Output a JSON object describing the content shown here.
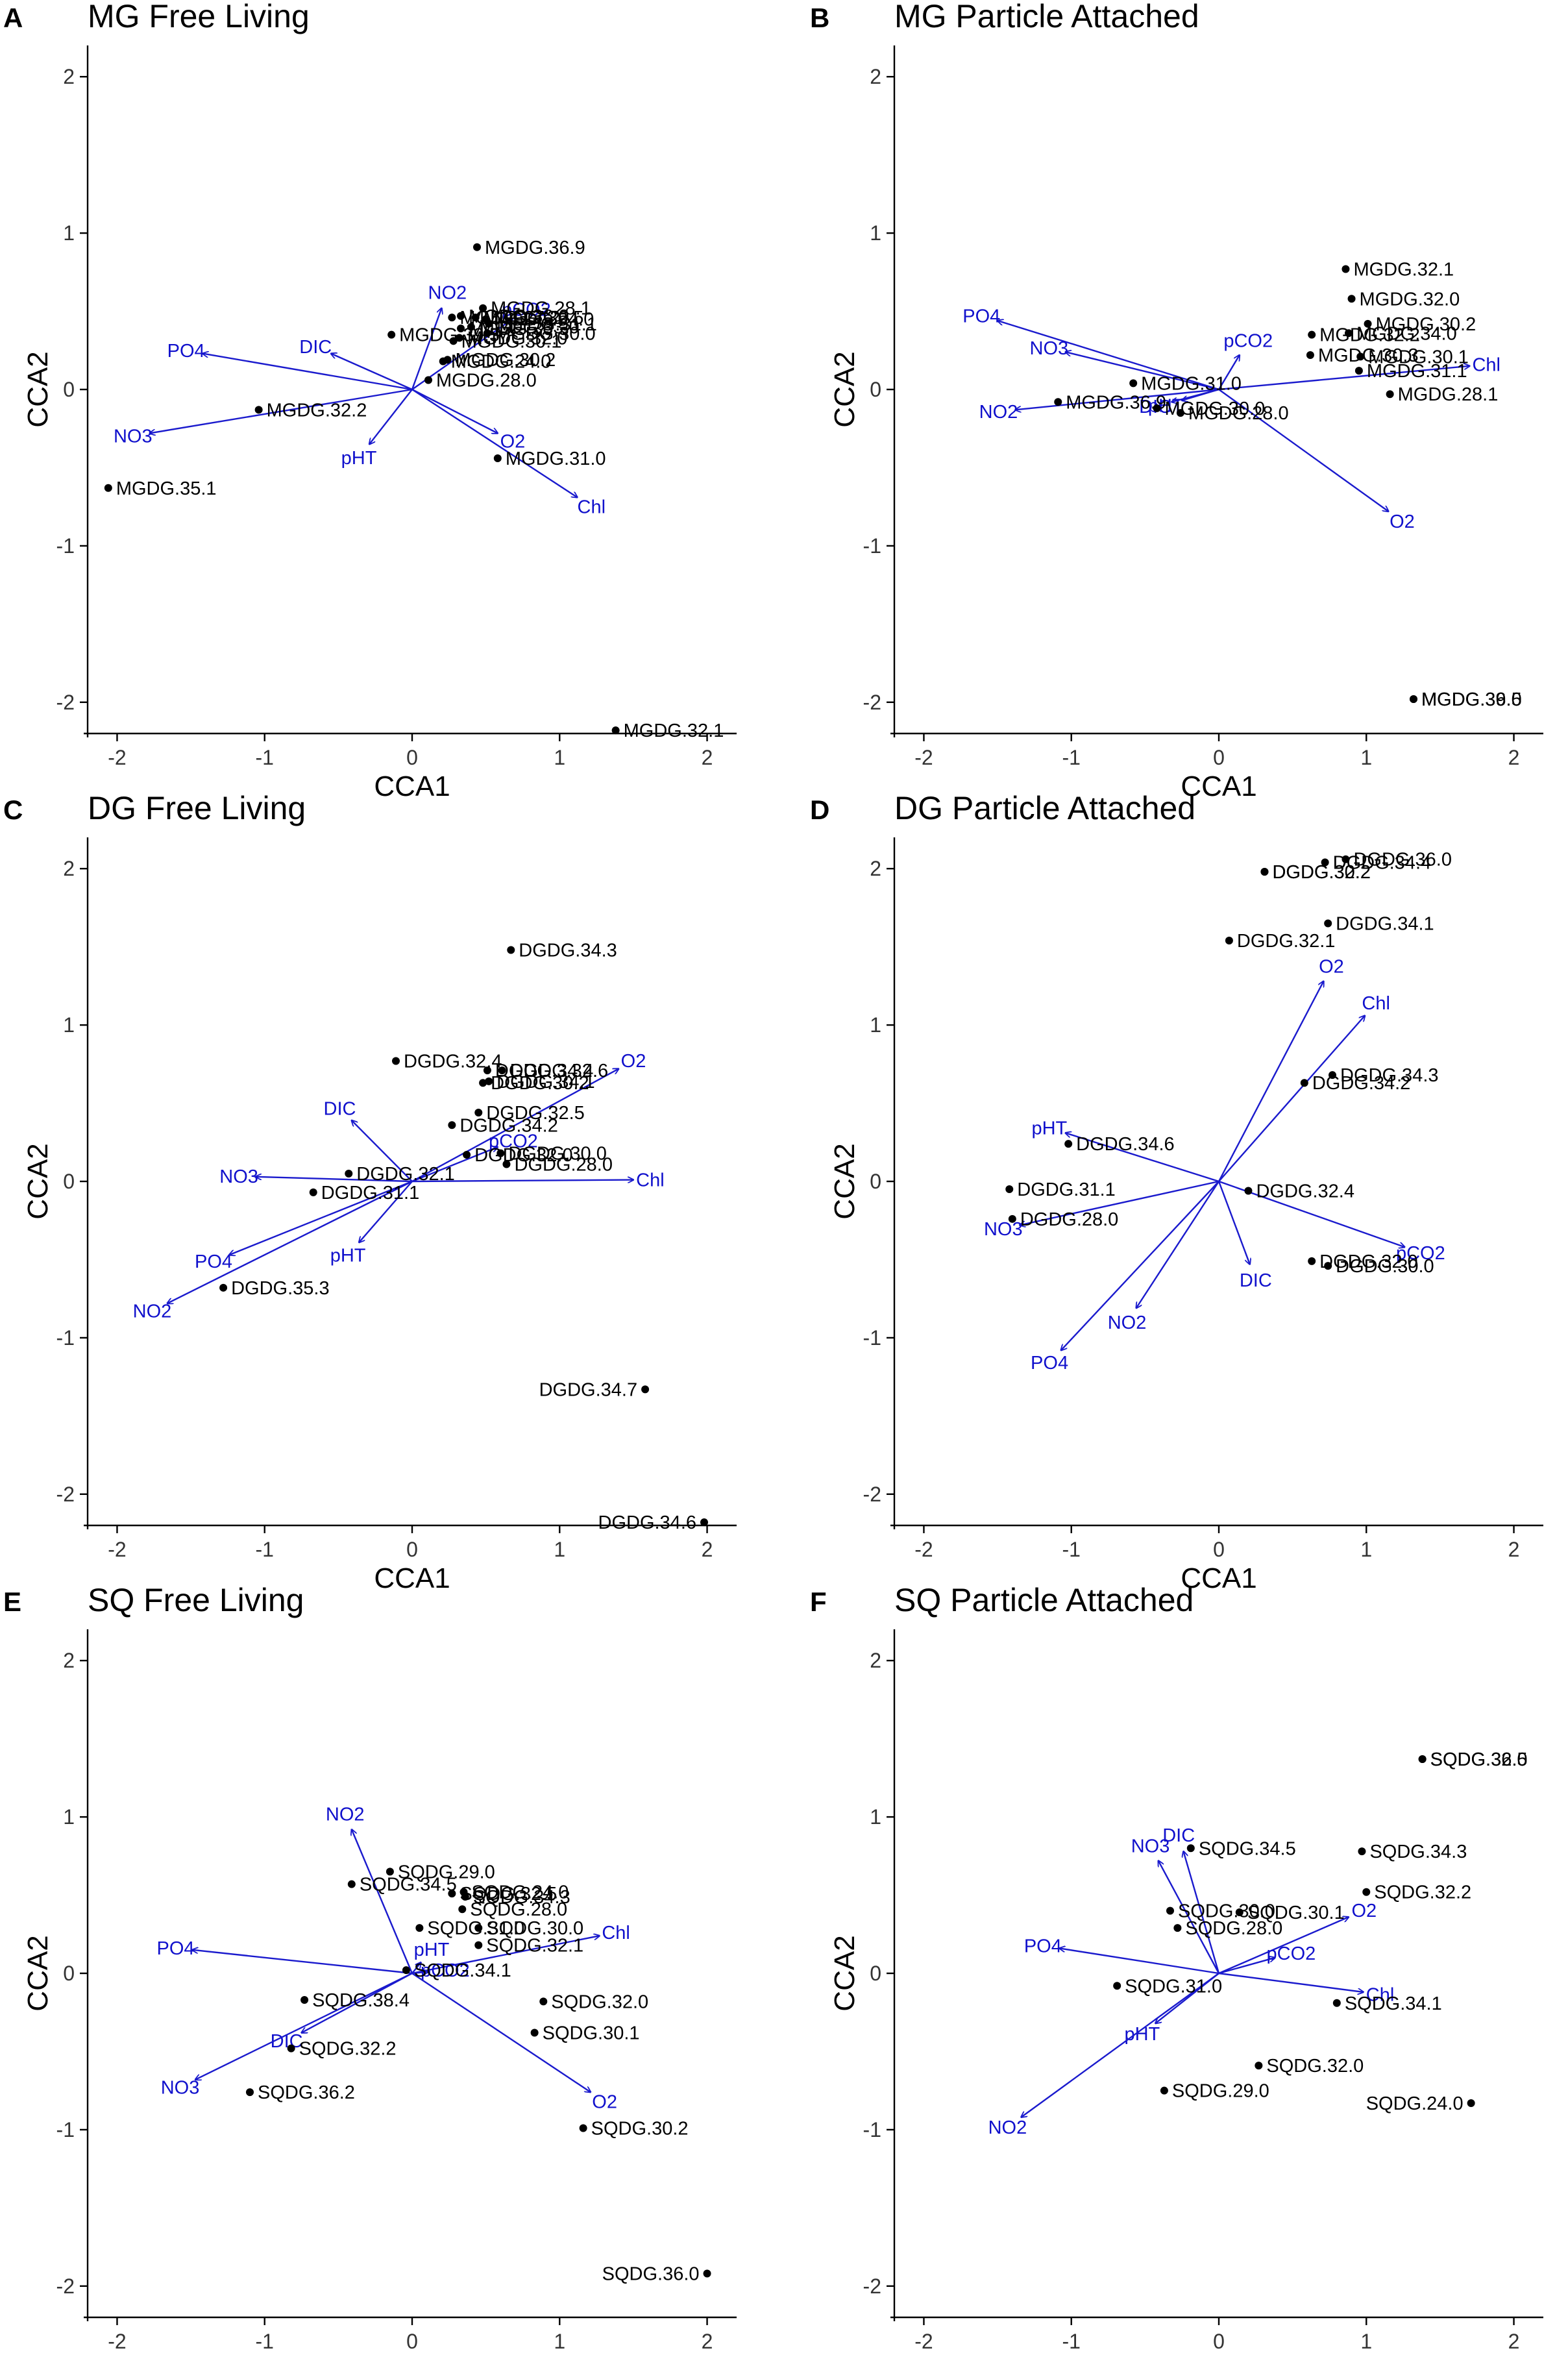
{
  "x_axis_title": "CCA1",
  "y_axis_title": "CCA2",
  "colors": {
    "points": "#000000",
    "arrows": "#1a1acd",
    "arrow_labels": "#1010cc"
  },
  "chart_data": [
    {
      "type": "scatter",
      "panel": "A",
      "title": "MG Free Living",
      "xlabel": "CCA1",
      "ylabel": "CCA2",
      "xlim": [
        -2.2,
        2.2
      ],
      "ylim": [
        -2.2,
        2.2
      ],
      "xticks": [
        -2,
        -1,
        0,
        1,
        2
      ],
      "yticks": [
        -2,
        -1,
        0,
        1,
        2
      ],
      "points": [
        {
          "label": "MGDG.36.9",
          "x": 0.44,
          "y": 0.91
        },
        {
          "label": "MGDG.27.2",
          "x": 0.27,
          "y": 0.46
        },
        {
          "label": "MGDG.28.1",
          "x": 0.48,
          "y": 0.52
        },
        {
          "label": "MGDG.36.0",
          "x": 0.33,
          "y": 0.47
        },
        {
          "label": "MGDG.34.0",
          "x": 0.5,
          "y": 0.45
        },
        {
          "label": "MGDG.39.5",
          "x": -0.14,
          "y": 0.35
        },
        {
          "label": "MGDG.30.3",
          "x": 0.33,
          "y": 0.39
        },
        {
          "label": "MGDG.36.5",
          "x": 0.43,
          "y": 0.46
        },
        {
          "label": "MGDG.30.1",
          "x": 0.28,
          "y": 0.31
        },
        {
          "label": "MGDG.32.0",
          "x": 0.32,
          "y": 0.33
        },
        {
          "label": "MGDG.24.0",
          "x": 0.21,
          "y": 0.18
        },
        {
          "label": "MGDG.30.2",
          "x": 0.24,
          "y": 0.19
        },
        {
          "label": "MGDG.33.0",
          "x": 0.4,
          "y": 0.4
        },
        {
          "label": "MGDG.28.0",
          "x": 0.11,
          "y": 0.06
        },
        {
          "label": "MGDG.30.0",
          "x": 0.51,
          "y": 0.36
        },
        {
          "label": "MGDG.31.1",
          "x": 0.52,
          "y": 0.42
        },
        {
          "label": "MGDG.32.2",
          "x": -1.04,
          "y": -0.13
        },
        {
          "label": "MGDG.31.0",
          "x": 0.58,
          "y": -0.44
        },
        {
          "label": "MGDG.35.1",
          "x": -2.06,
          "y": -0.63
        },
        {
          "label": "MGDG.32.1",
          "x": 1.38,
          "y": -2.18
        }
      ],
      "vectors": [
        {
          "label": "NO2",
          "x": 0.2,
          "y": 0.52
        },
        {
          "label": "pCO2",
          "x": 0.68,
          "y": 0.45
        },
        {
          "label": "DIC",
          "x": -0.55,
          "y": 0.23
        },
        {
          "label": "PO4",
          "x": -1.42,
          "y": 0.23
        },
        {
          "label": "NO3",
          "x": -1.78,
          "y": -0.28
        },
        {
          "label": "pHT",
          "x": -0.29,
          "y": -0.35
        },
        {
          "label": "O2",
          "x": 0.58,
          "y": -0.28
        },
        {
          "label": "Chl",
          "x": 1.12,
          "y": -0.69
        }
      ]
    },
    {
      "type": "scatter",
      "panel": "B",
      "title": "MG Particle Attached",
      "xlabel": "CCA1",
      "ylabel": "CCA2",
      "xlim": [
        -2.2,
        2.2
      ],
      "ylim": [
        -2.2,
        2.2
      ],
      "xticks": [
        -2,
        -1,
        0,
        1,
        2
      ],
      "yticks": [
        -2,
        -1,
        0,
        1,
        2
      ],
      "points": [
        {
          "label": "MGDG.32.1",
          "x": 0.86,
          "y": 0.77
        },
        {
          "label": "MGDG.32.0",
          "x": 0.9,
          "y": 0.58
        },
        {
          "label": "MGDG.30.2",
          "x": 1.01,
          "y": 0.42
        },
        {
          "label": "MGDG.32.2",
          "x": 0.63,
          "y": 0.35
        },
        {
          "label": "MGDG.34.0",
          "x": 0.88,
          "y": 0.36
        },
        {
          "label": "MGDG.31.0",
          "x": -0.58,
          "y": 0.04
        },
        {
          "label": "MGDG.30.3",
          "x": 0.62,
          "y": 0.22
        },
        {
          "label": "MGDG.36.9",
          "x": -1.09,
          "y": -0.08
        },
        {
          "label": "MGDG.30.1",
          "x": 0.96,
          "y": 0.21
        },
        {
          "label": "MGDG.28.1",
          "x": 1.16,
          "y": -0.03
        },
        {
          "label": "MGDG.30.0",
          "x": -0.42,
          "y": -0.12
        },
        {
          "label": "MGDG.28.0",
          "x": -0.26,
          "y": -0.15
        },
        {
          "label": "MGDG.31.1",
          "x": 0.95,
          "y": 0.12
        },
        {
          "label": "MGDG.36.0",
          "x": 1.32,
          "y": -1.98
        },
        {
          "label": "MGDG.39.5",
          "x": 1.32,
          "y": -1.98
        }
      ],
      "vectors": [
        {
          "label": "PO4",
          "x": -1.5,
          "y": 0.44
        },
        {
          "label": "NO3",
          "x": -1.04,
          "y": 0.24
        },
        {
          "label": "pCO2",
          "x": 0.14,
          "y": 0.22
        },
        {
          "label": "Chl",
          "x": 1.7,
          "y": 0.15
        },
        {
          "label": "DIC",
          "x": -0.32,
          "y": -0.08
        },
        {
          "label": "pHT",
          "x": -0.25,
          "y": -0.07
        },
        {
          "label": "NO2",
          "x": -1.38,
          "y": -0.13
        },
        {
          "label": "O2",
          "x": 1.15,
          "y": -0.78
        }
      ]
    },
    {
      "type": "scatter",
      "panel": "C",
      "title": "DG Free Living",
      "xlabel": "CCA1",
      "ylabel": "CCA2",
      "xlim": [
        -2.2,
        2.2
      ],
      "ylim": [
        -2.2,
        2.2
      ],
      "xticks": [
        -2,
        -1,
        0,
        1,
        2
      ],
      "yticks": [
        -2,
        -1,
        0,
        1,
        2
      ],
      "points": [
        {
          "label": "DGDG.34.3",
          "x": 0.67,
          "y": 1.48
        },
        {
          "label": "DGDG.32.6",
          "x": 0.61,
          "y": 0.71
        },
        {
          "label": "DGDG.32.4",
          "x": -0.11,
          "y": 0.77
        },
        {
          "label": "DGDG.34.4",
          "x": 0.51,
          "y": 0.71
        },
        {
          "label": "DGDG.30.2",
          "x": 0.48,
          "y": 0.63
        },
        {
          "label": "DGDG.34.1",
          "x": 0.52,
          "y": 0.64
        },
        {
          "label": "DGDG.32.5",
          "x": 0.45,
          "y": 0.44
        },
        {
          "label": "DGDG.34.2",
          "x": 0.27,
          "y": 0.36
        },
        {
          "label": "DGDG.32.1",
          "x": -0.43,
          "y": 0.05
        },
        {
          "label": "DGDG.32.0",
          "x": 0.37,
          "y": 0.17
        },
        {
          "label": "DGDG.28.0",
          "x": 0.64,
          "y": 0.11
        },
        {
          "label": "DGDG.30.0",
          "x": 0.6,
          "y": 0.18
        },
        {
          "label": "DGDG.31.1",
          "x": -0.67,
          "y": -0.07
        },
        {
          "label": "DGDG.35.3",
          "x": -1.28,
          "y": -0.68
        },
        {
          "label": "DGDG.34.7",
          "x": 1.58,
          "y": -1.33
        },
        {
          "label": "DGDG.34.6",
          "x": 1.98,
          "y": -2.18
        }
      ],
      "vectors": [
        {
          "label": "O2",
          "x": 1.4,
          "y": 0.72
        },
        {
          "label": "DIC",
          "x": -0.41,
          "y": 0.39
        },
        {
          "label": "pCO2",
          "x": 0.58,
          "y": 0.22
        },
        {
          "label": "Chl",
          "x": 1.5,
          "y": 0.01
        },
        {
          "label": "NO3",
          "x": -1.06,
          "y": 0.03
        },
        {
          "label": "PO4",
          "x": -1.24,
          "y": -0.47
        },
        {
          "label": "pHT",
          "x": -0.36,
          "y": -0.39
        },
        {
          "label": "NO2",
          "x": -1.66,
          "y": -0.78
        }
      ]
    },
    {
      "type": "scatter",
      "panel": "D",
      "title": "DG Particle Attached",
      "xlabel": "CCA1",
      "ylabel": "CCA2",
      "xlim": [
        -2.2,
        2.2
      ],
      "ylim": [
        -2.2,
        2.2
      ],
      "xticks": [
        -2,
        -1,
        0,
        1,
        2
      ],
      "yticks": [
        -2,
        -1,
        0,
        1,
        2
      ],
      "points": [
        {
          "label": "DGDG.32.2",
          "x": 0.31,
          "y": 1.98
        },
        {
          "label": "DGDG.36.0",
          "x": 0.86,
          "y": 2.06
        },
        {
          "label": "DGDG.30.2",
          "x": 0.31,
          "y": 1.98
        },
        {
          "label": "DGDG.34.4",
          "x": 0.72,
          "y": 2.04
        },
        {
          "label": "DGDG.34.1",
          "x": 0.74,
          "y": 1.65
        },
        {
          "label": "DGDG.32.1",
          "x": 0.07,
          "y": 1.54
        },
        {
          "label": "DGDG.34.3",
          "x": 0.77,
          "y": 0.68
        },
        {
          "label": "DGDG.34.2",
          "x": 0.58,
          "y": 0.63
        },
        {
          "label": "DGDG.34.6",
          "x": -1.02,
          "y": 0.24
        },
        {
          "label": "DGDG.31.1",
          "x": -1.42,
          "y": -0.05
        },
        {
          "label": "DGDG.32.4",
          "x": 0.2,
          "y": -0.06
        },
        {
          "label": "DGDG.28.0",
          "x": -1.4,
          "y": -0.24
        },
        {
          "label": "DGDG.32.0",
          "x": 0.63,
          "y": -0.51
        },
        {
          "label": "DGDG.30.0",
          "x": 0.74,
          "y": -0.54
        }
      ],
      "vectors": [
        {
          "label": "O2",
          "x": 0.71,
          "y": 1.28
        },
        {
          "label": "Chl",
          "x": 0.99,
          "y": 1.06
        },
        {
          "label": "pHT",
          "x": -1.04,
          "y": 0.31
        },
        {
          "label": "NO3",
          "x": -1.35,
          "y": -0.28
        },
        {
          "label": "pCO2",
          "x": 1.26,
          "y": -0.42
        },
        {
          "label": "DIC",
          "x": 0.21,
          "y": -0.53
        },
        {
          "label": "NO2",
          "x": -0.56,
          "y": -0.81
        },
        {
          "label": "PO4",
          "x": -1.07,
          "y": -1.08
        }
      ]
    },
    {
      "type": "scatter",
      "panel": "E",
      "title": "SQ Free Living",
      "xlabel": "CCA1",
      "ylabel": "CCA2",
      "xlim": [
        -2.2,
        2.2
      ],
      "ylim": [
        -2.2,
        2.2
      ],
      "xticks": [
        -2,
        -1,
        0,
        1,
        2
      ],
      "yticks": [
        -2,
        -1,
        0,
        1,
        2
      ],
      "points": [
        {
          "label": "SQDG.24.0",
          "x": 0.35,
          "y": 0.52
        },
        {
          "label": "SQDG.29.0",
          "x": -0.15,
          "y": 0.65
        },
        {
          "label": "SQDG.32.5",
          "x": 0.27,
          "y": 0.51
        },
        {
          "label": "SQDG.34.3",
          "x": 0.36,
          "y": 0.49
        },
        {
          "label": "SQDG.34.5",
          "x": -0.41,
          "y": 0.57
        },
        {
          "label": "SQDG.28.0",
          "x": 0.34,
          "y": 0.41
        },
        {
          "label": "SQDG.31.0",
          "x": 0.05,
          "y": 0.29
        },
        {
          "label": "SQDG.30.0",
          "x": 0.45,
          "y": 0.29
        },
        {
          "label": "SQDG.32.1",
          "x": 0.45,
          "y": 0.18
        },
        {
          "label": "SQDG.38.4",
          "x": -0.73,
          "y": -0.17
        },
        {
          "label": "SQDG.32.0",
          "x": 0.89,
          "y": -0.18
        },
        {
          "label": "SQDG.34.1",
          "x": -0.04,
          "y": 0.02
        },
        {
          "label": "SQDG.30.1",
          "x": 0.83,
          "y": -0.38
        },
        {
          "label": "SQDG.32.2",
          "x": -0.82,
          "y": -0.48
        },
        {
          "label": "SQDG.36.2",
          "x": -1.1,
          "y": -0.76
        },
        {
          "label": "SQDG.30.2",
          "x": 1.16,
          "y": -0.99
        },
        {
          "label": "SQDG.36.0",
          "x": 2.0,
          "y": -1.92
        }
      ],
      "vectors": [
        {
          "label": "NO2",
          "x": -0.41,
          "y": 0.92
        },
        {
          "label": "pHT",
          "x": 0.06,
          "y": 0.07
        },
        {
          "label": "Chl",
          "x": 1.27,
          "y": 0.24
        },
        {
          "label": "PO4",
          "x": -1.49,
          "y": 0.15
        },
        {
          "label": "pCO2",
          "x": 0.11,
          "y": 0.01
        },
        {
          "label": "DIC",
          "x": -0.75,
          "y": -0.38
        },
        {
          "label": "O2",
          "x": 1.21,
          "y": -0.76
        },
        {
          "label": "NO3",
          "x": -1.47,
          "y": -0.68
        }
      ]
    },
    {
      "type": "scatter",
      "panel": "F",
      "title": "SQ Particle Attached",
      "xlabel": "CCA1",
      "ylabel": "CCA2",
      "xlim": [
        -2.2,
        2.2
      ],
      "ylim": [
        -2.2,
        2.2
      ],
      "xticks": [
        -2,
        -1,
        0,
        1,
        2
      ],
      "yticks": [
        -2,
        -1,
        0,
        1,
        2
      ],
      "points": [
        {
          "label": "SQDG.32.5",
          "x": 1.38,
          "y": 1.37
        },
        {
          "label": "SQDG.36.0",
          "x": 1.38,
          "y": 1.37
        },
        {
          "label": "SQDG.34.5",
          "x": -0.19,
          "y": 0.8
        },
        {
          "label": "SQDG.34.3",
          "x": 0.97,
          "y": 0.78
        },
        {
          "label": "SQDG.32.2",
          "x": 1.0,
          "y": 0.52
        },
        {
          "label": "SQDG.30.0",
          "x": -0.33,
          "y": 0.4
        },
        {
          "label": "SQDG.30.1",
          "x": 0.14,
          "y": 0.39
        },
        {
          "label": "SQDG.28.0",
          "x": -0.28,
          "y": 0.29
        },
        {
          "label": "SQDG.31.0",
          "x": -0.69,
          "y": -0.08
        },
        {
          "label": "SQDG.34.1",
          "x": 0.8,
          "y": -0.19
        },
        {
          "label": "SQDG.32.0",
          "x": 0.27,
          "y": -0.59
        },
        {
          "label": "SQDG.29.0",
          "x": -0.37,
          "y": -0.75
        },
        {
          "label": "SQDG.24.0",
          "x": 1.71,
          "y": -0.83
        }
      ],
      "vectors": [
        {
          "label": "DIC",
          "x": -0.24,
          "y": 0.78
        },
        {
          "label": "NO3",
          "x": -0.41,
          "y": 0.72
        },
        {
          "label": "O2",
          "x": 0.88,
          "y": 0.36
        },
        {
          "label": "pCO2",
          "x": 0.38,
          "y": 0.1
        },
        {
          "label": "PO4",
          "x": -1.08,
          "y": 0.16
        },
        {
          "label": "Chl",
          "x": 0.98,
          "y": -0.12
        },
        {
          "label": "pHT",
          "x": -0.43,
          "y": -0.32
        },
        {
          "label": "NO2",
          "x": -1.34,
          "y": -0.92
        }
      ]
    }
  ]
}
